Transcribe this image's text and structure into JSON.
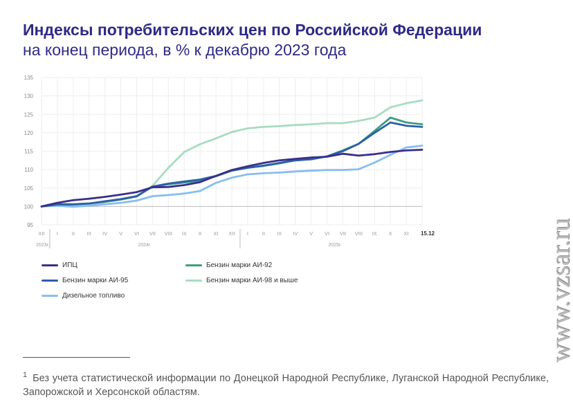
{
  "title": "Индексы потребительских цен по Российской Федерации",
  "subtitle": "на конец периода, в % к декабрю 2023 года",
  "footnote": {
    "mark": "1",
    "text": "Без учета статистической информации по Донецкой Народной Республике, Луганской Народной Республике, Запорожской и Херсонской областям."
  },
  "watermark": "www.vzsar.ru",
  "chart_data": {
    "type": "line",
    "ylim": [
      95,
      135
    ],
    "yticks": [
      95,
      100,
      105,
      110,
      115,
      120,
      125,
      130,
      135
    ],
    "x": [
      "XII",
      "I",
      "II",
      "III",
      "IV",
      "V",
      "VI",
      "VII",
      "VIII",
      "IX",
      "X",
      "XI",
      "XII",
      "I",
      "II",
      "III",
      "IV",
      "V",
      "VI",
      "VII",
      "VIII",
      "IX",
      "X",
      "XI",
      "15.12"
    ],
    "years": [
      {
        "label": "2023г.",
        "from": 0,
        "to": 0
      },
      {
        "label": "2024г.",
        "from": 1,
        "to": 12
      },
      {
        "label": "2025г.",
        "from": 13,
        "to": 24
      }
    ],
    "series": [
      {
        "name": "Бензин марки АИ-98 и выше",
        "color": "#a6dcc0",
        "values": [
          100,
          100.3,
          100.2,
          100.5,
          101.2,
          101.8,
          102.8,
          105.6,
          110.5,
          114.8,
          116.9,
          118.5,
          120.2,
          121.2,
          121.6,
          121.8,
          122.1,
          122.3,
          122.6,
          122.6,
          123.2,
          124.1,
          126.9,
          128,
          128.8
        ]
      },
      {
        "name": "Дизельное топливо",
        "color": "#86bdf0",
        "values": [
          100,
          100.2,
          99.9,
          100.2,
          100.6,
          101,
          101.6,
          102.8,
          103.1,
          103.5,
          104.2,
          106.4,
          107.8,
          108.7,
          109,
          109.2,
          109.5,
          109.7,
          109.9,
          109.9,
          110.1,
          111.9,
          114,
          116,
          116.5
        ]
      },
      {
        "name": "Бензин марки АИ-92",
        "color": "#3a9e84",
        "values": [
          100,
          100.5,
          100.5,
          100.8,
          101.3,
          101.9,
          102.7,
          105.4,
          106,
          106.5,
          107,
          108.2,
          109.7,
          110.5,
          111,
          111.7,
          112.5,
          112.9,
          113.6,
          115.2,
          117,
          120.5,
          124.1,
          122.8,
          122.3
        ]
      },
      {
        "name": "Бензин марки АИ-95",
        "color": "#2d5fa8",
        "values": [
          100,
          100.6,
          100.6,
          100.8,
          101.4,
          102,
          102.8,
          105.4,
          106.2,
          106.8,
          107.3,
          108.3,
          109.8,
          110.5,
          111.1,
          111.8,
          112.5,
          112.8,
          113.6,
          115,
          117,
          120,
          122.8,
          121.9,
          121.6
        ]
      },
      {
        "name": "ИПЦ",
        "color": "#3a2f8a",
        "values": [
          100,
          101,
          101.7,
          102.1,
          102.6,
          103.2,
          103.9,
          105.2,
          105.3,
          105.8,
          106.6,
          108.3,
          109.9,
          110.9,
          111.8,
          112.5,
          112.9,
          113.3,
          113.5,
          114.3,
          113.8,
          114.2,
          114.8,
          115.2,
          115.4
        ]
      }
    ],
    "legend": [
      {
        "name": "ИПЦ",
        "color": "#3a2f8a"
      },
      {
        "name": "Бензин марки АИ-92",
        "color": "#3a9e84"
      },
      {
        "name": "Бензин марки АИ-95",
        "color": "#2d5fa8"
      },
      {
        "name": "Бензин марки АИ-98 и выше",
        "color": "#a6dcc0"
      },
      {
        "name": "Дизельное топливо",
        "color": "#86bdf0"
      }
    ]
  }
}
